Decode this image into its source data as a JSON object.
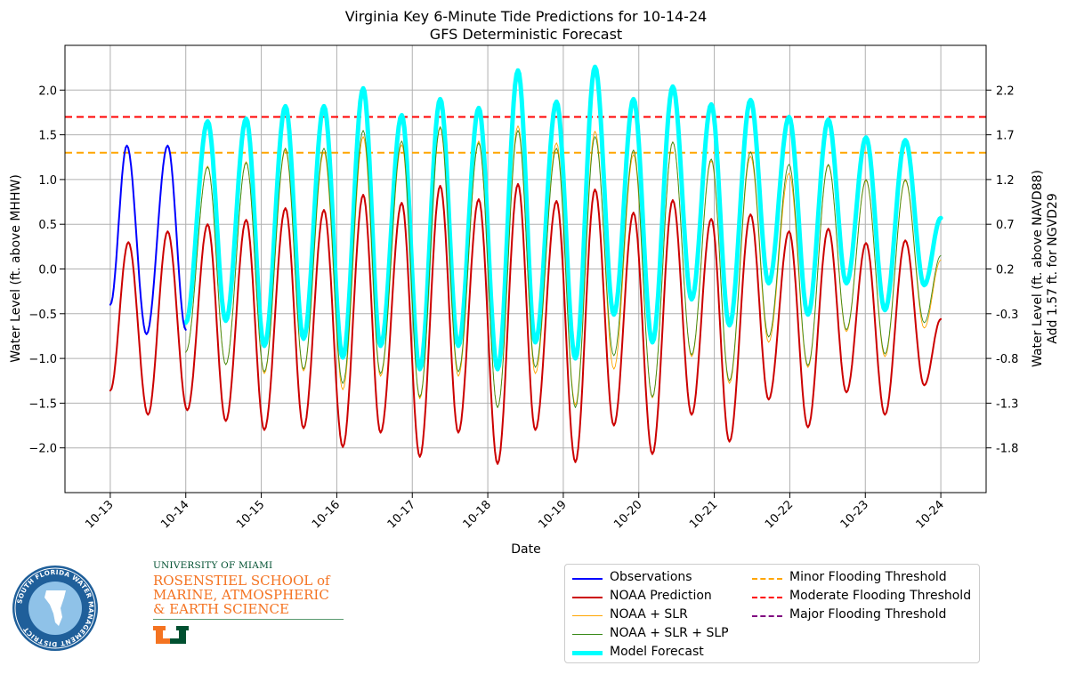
{
  "chart_data": {
    "type": "line",
    "title": "Virginia Key 6-Minute Tide Predictions for 10-14-24",
    "subtitle": "GFS Deterministic Forecast",
    "xlabel": "Date",
    "ylabel": "Water Level (ft. above MHHW)",
    "ylabel_right": "Water Level (ft. above NAVD88)",
    "ylabel_right2": "Add 1.57 ft. for NGVD29",
    "x_ticks": [
      "10-13",
      "10-14",
      "10-15",
      "10-16",
      "10-17",
      "10-18",
      "10-19",
      "10-20",
      "10-21",
      "10-22",
      "10-23",
      "10-24"
    ],
    "y_ticks": [
      -2.0,
      -1.5,
      -1.0,
      -0.5,
      0.0,
      0.5,
      1.0,
      1.5,
      2.0
    ],
    "y_tick_labels": [
      "−2.0",
      "−1.5",
      "−1.0",
      "−0.5",
      "0.0",
      "0.5",
      "1.0",
      "1.5",
      "2.0"
    ],
    "y2_tick_labels": [
      "-1.8",
      "-1.3",
      "-0.8",
      "-0.3",
      "0.2",
      "0.7",
      "1.2",
      "1.7",
      "2.2"
    ],
    "ylim": [
      -2.5,
      2.5
    ],
    "xlim_days": [
      -0.6,
      11.6
    ],
    "grid": true,
    "legend_position": "bottom-right",
    "thresholds": [
      {
        "name": "Minor Flooding Threshold",
        "value": 1.3,
        "color": "#ffa500"
      },
      {
        "name": "Moderate Flooding Threshold",
        "value": 1.7,
        "color": "#ff0000"
      },
      {
        "name": "Major Flooding Threshold",
        "value": null,
        "color": "#800080"
      }
    ],
    "series": [
      {
        "name": "Observations",
        "color": "#0000ff",
        "width": 2,
        "x_start": 0,
        "x_end": 1,
        "peaks": [
          [
            0.0,
            -0.4
          ],
          [
            0.22,
            1.38
          ],
          [
            0.48,
            -0.73
          ],
          [
            0.76,
            1.38
          ],
          [
            1.0,
            -0.68
          ]
        ]
      },
      {
        "name": "NOAA Prediction",
        "color": "#cc0000",
        "width": 2,
        "x_start": 0,
        "x_end": 11,
        "peaks": [
          [
            0.0,
            -1.36
          ],
          [
            0.24,
            0.3
          ],
          [
            0.5,
            -1.63
          ],
          [
            0.76,
            0.42
          ],
          [
            1.02,
            -1.58
          ],
          [
            1.29,
            0.5
          ],
          [
            1.53,
            -1.7
          ],
          [
            1.8,
            0.55
          ],
          [
            2.04,
            -1.8
          ],
          [
            2.32,
            0.68
          ],
          [
            2.56,
            -1.78
          ],
          [
            2.83,
            0.66
          ],
          [
            3.08,
            -1.99
          ],
          [
            3.35,
            0.83
          ],
          [
            3.58,
            -1.83
          ],
          [
            3.86,
            0.74
          ],
          [
            4.1,
            -2.1
          ],
          [
            4.37,
            0.93
          ],
          [
            4.61,
            -1.83
          ],
          [
            4.88,
            0.78
          ],
          [
            5.13,
            -2.18
          ],
          [
            5.4,
            0.95
          ],
          [
            5.63,
            -1.8
          ],
          [
            5.91,
            0.76
          ],
          [
            6.16,
            -2.16
          ],
          [
            6.42,
            0.89
          ],
          [
            6.67,
            -1.75
          ],
          [
            6.93,
            0.63
          ],
          [
            7.18,
            -2.07
          ],
          [
            7.45,
            0.77
          ],
          [
            7.7,
            -1.63
          ],
          [
            7.96,
            0.56
          ],
          [
            8.2,
            -1.93
          ],
          [
            8.48,
            0.61
          ],
          [
            8.72,
            -1.46
          ],
          [
            8.99,
            0.42
          ],
          [
            9.24,
            -1.77
          ],
          [
            9.51,
            0.45
          ],
          [
            9.75,
            -1.38
          ],
          [
            10.01,
            0.29
          ],
          [
            10.26,
            -1.63
          ],
          [
            10.53,
            0.32
          ],
          [
            10.78,
            -1.3
          ],
          [
            11.0,
            -0.56
          ]
        ]
      },
      {
        "name": "NOAA + SLR",
        "color": "#ffa500",
        "width": 0.9,
        "x_start": 1,
        "x_end": 11,
        "peaks": [
          [
            1.0,
            -0.93
          ],
          [
            1.29,
            1.15
          ],
          [
            1.53,
            -1.07
          ],
          [
            1.8,
            1.2
          ],
          [
            2.04,
            -1.17
          ],
          [
            2.32,
            1.33
          ],
          [
            2.56,
            -1.14
          ],
          [
            2.83,
            1.31
          ],
          [
            3.08,
            -1.35
          ],
          [
            3.35,
            1.48
          ],
          [
            3.58,
            -1.2
          ],
          [
            3.86,
            1.39
          ],
          [
            4.1,
            -1.45
          ],
          [
            4.37,
            1.58
          ],
          [
            4.61,
            -1.2
          ],
          [
            4.88,
            1.43
          ],
          [
            5.13,
            -1.55
          ],
          [
            5.4,
            1.6
          ],
          [
            5.63,
            -1.17
          ],
          [
            5.91,
            1.41
          ],
          [
            6.16,
            -1.52
          ],
          [
            6.42,
            1.54
          ],
          [
            6.67,
            -1.12
          ],
          [
            6.93,
            1.28
          ],
          [
            7.18,
            -1.44
          ],
          [
            7.45,
            1.42
          ],
          [
            7.7,
            -0.98
          ],
          [
            7.96,
            1.21
          ],
          [
            8.2,
            -1.28
          ],
          [
            8.48,
            1.26
          ],
          [
            8.72,
            -0.82
          ],
          [
            8.99,
            1.07
          ],
          [
            9.24,
            -1.1
          ],
          [
            9.51,
            1.16
          ],
          [
            9.75,
            -0.7
          ],
          [
            10.01,
            0.99
          ],
          [
            10.26,
            -0.98
          ],
          [
            10.53,
            0.99
          ],
          [
            10.78,
            -0.66
          ],
          [
            11.0,
            0.1
          ]
        ]
      },
      {
        "name": "NOAA + SLR + SLP",
        "color": "#3a8a1a",
        "width": 0.9,
        "x_start": 1,
        "x_end": 11,
        "peaks": [
          [
            1.0,
            -0.93
          ],
          [
            1.29,
            1.14
          ],
          [
            1.53,
            -1.07
          ],
          [
            1.8,
            1.19
          ],
          [
            2.04,
            -1.15
          ],
          [
            2.32,
            1.35
          ],
          [
            2.56,
            -1.12
          ],
          [
            2.83,
            1.35
          ],
          [
            3.08,
            -1.28
          ],
          [
            3.35,
            1.55
          ],
          [
            3.58,
            -1.17
          ],
          [
            3.86,
            1.43
          ],
          [
            4.1,
            -1.43
          ],
          [
            4.37,
            1.59
          ],
          [
            4.61,
            -1.15
          ],
          [
            4.88,
            1.41
          ],
          [
            5.13,
            -1.55
          ],
          [
            5.4,
            1.55
          ],
          [
            5.63,
            -1.1
          ],
          [
            5.91,
            1.35
          ],
          [
            6.16,
            -1.55
          ],
          [
            6.42,
            1.48
          ],
          [
            6.67,
            -0.97
          ],
          [
            6.93,
            1.33
          ],
          [
            7.18,
            -1.43
          ],
          [
            7.45,
            1.42
          ],
          [
            7.7,
            -0.96
          ],
          [
            7.96,
            1.23
          ],
          [
            8.2,
            -1.25
          ],
          [
            8.48,
            1.31
          ],
          [
            8.72,
            -0.76
          ],
          [
            8.99,
            1.17
          ],
          [
            9.24,
            -1.08
          ],
          [
            9.51,
            1.17
          ],
          [
            9.75,
            -0.68
          ],
          [
            10.01,
            1.0
          ],
          [
            10.26,
            -0.95
          ],
          [
            10.53,
            1.0
          ],
          [
            10.78,
            -0.6
          ],
          [
            11.0,
            0.15
          ]
        ]
      },
      {
        "name": "Model Forecast",
        "color": "#00ffff",
        "width": 5,
        "x_start": 1,
        "x_end": 11,
        "peaks": [
          [
            1.0,
            -0.6
          ],
          [
            1.29,
            1.65
          ],
          [
            1.53,
            -0.58
          ],
          [
            1.8,
            1.68
          ],
          [
            2.04,
            -0.86
          ],
          [
            2.32,
            1.82
          ],
          [
            2.56,
            -0.78
          ],
          [
            2.83,
            1.82
          ],
          [
            3.08,
            -0.99
          ],
          [
            3.35,
            2.02
          ],
          [
            3.58,
            -0.86
          ],
          [
            3.86,
            1.72
          ],
          [
            4.1,
            -1.12
          ],
          [
            4.37,
            1.9
          ],
          [
            4.61,
            -0.86
          ],
          [
            4.88,
            1.8
          ],
          [
            5.13,
            -1.12
          ],
          [
            5.4,
            2.22
          ],
          [
            5.63,
            -0.82
          ],
          [
            5.91,
            1.87
          ],
          [
            6.16,
            -1.0
          ],
          [
            6.42,
            2.26
          ],
          [
            6.67,
            -0.51
          ],
          [
            6.93,
            1.9
          ],
          [
            7.18,
            -0.82
          ],
          [
            7.45,
            2.04
          ],
          [
            7.7,
            -0.34
          ],
          [
            7.96,
            1.84
          ],
          [
            8.2,
            -0.63
          ],
          [
            8.48,
            1.89
          ],
          [
            8.72,
            -0.16
          ],
          [
            8.99,
            1.7
          ],
          [
            9.24,
            -0.51
          ],
          [
            9.51,
            1.67
          ],
          [
            9.75,
            -0.16
          ],
          [
            10.01,
            1.47
          ],
          [
            10.26,
            -0.46
          ],
          [
            10.53,
            1.44
          ],
          [
            10.78,
            -0.18
          ],
          [
            11.0,
            0.57
          ]
        ]
      }
    ]
  },
  "legend": {
    "items": [
      {
        "label": "Observations",
        "color": "#0000ff",
        "style": "solid",
        "width": 2
      },
      {
        "label": "NOAA Prediction",
        "color": "#cc0000",
        "style": "solid",
        "width": 2
      },
      {
        "label": "NOAA + SLR",
        "color": "#ffa500",
        "style": "solid",
        "width": 1
      },
      {
        "label": "NOAA + SLR + SLP",
        "color": "#3a8a1a",
        "style": "solid",
        "width": 1
      },
      {
        "label": "Model Forecast",
        "color": "#00ffff",
        "style": "solid",
        "width": 5
      },
      {
        "label": "Minor Flooding Threshold",
        "color": "#ffa500",
        "style": "dashed",
        "width": 2
      },
      {
        "label": "Moderate Flooding Threshold",
        "color": "#ff0000",
        "style": "dashed",
        "width": 2
      },
      {
        "label": "Major Flooding Threshold",
        "color": "#800080",
        "style": "dashed",
        "width": 2
      }
    ]
  },
  "logos": {
    "sfwmd_text": "SOUTH FLORIDA WATER MANAGEMENT DISTRICT",
    "um_line1": "UNIVERSITY OF MIAMI",
    "um_line2": "ROSENSTIEL SCHOOL of",
    "um_line3": "MARINE, ATMOSPHERIC",
    "um_line4": "& EARTH SCIENCE"
  }
}
